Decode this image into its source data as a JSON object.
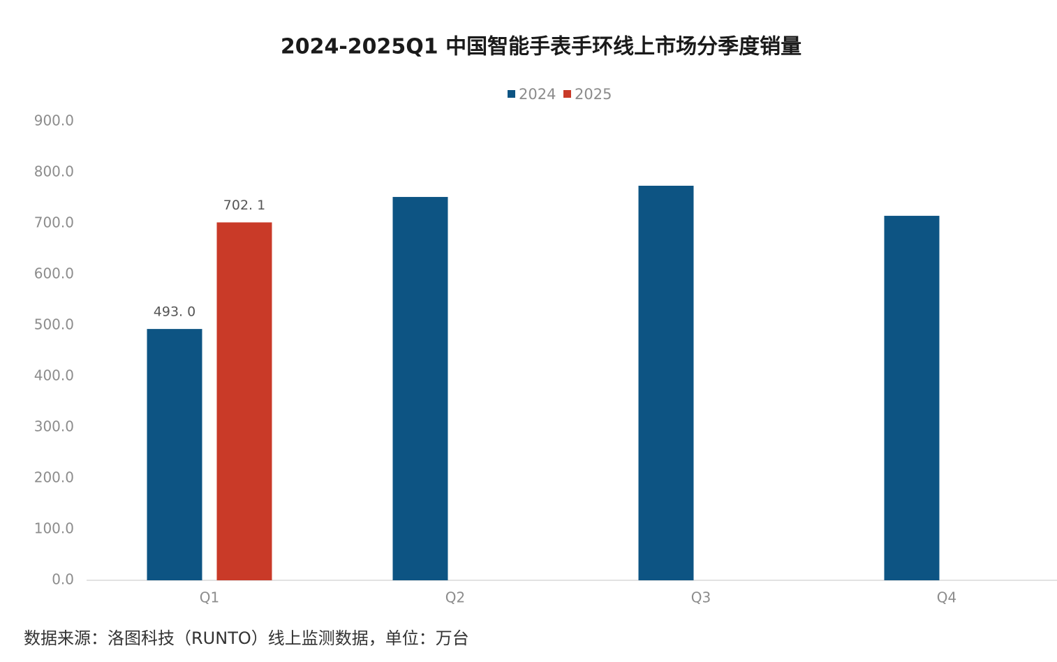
{
  "chart_data": {
    "type": "bar",
    "title": "2024-2025Q1 中国智能手表手环线上市场分季度销量",
    "categories": [
      "Q1",
      "Q2",
      "Q3",
      "Q4"
    ],
    "series": [
      {
        "name": "2024",
        "color": "#0d5483",
        "values": [
          493.0,
          752,
          774,
          715
        ],
        "value_labels": [
          "493. 0",
          null,
          null,
          null
        ]
      },
      {
        "name": "2025",
        "color": "#c93a28",
        "values": [
          702.1,
          null,
          null,
          null
        ],
        "value_labels": [
          "702. 1",
          null,
          null,
          null
        ]
      }
    ],
    "ylim": [
      0,
      900
    ],
    "yticks": [
      {
        "value": 0,
        "label": "0.0"
      },
      {
        "value": 100,
        "label": "100.0"
      },
      {
        "value": 200,
        "label": "200.0"
      },
      {
        "value": 300,
        "label": "300.0"
      },
      {
        "value": 400,
        "label": "400.0"
      },
      {
        "value": 500,
        "label": "500.0"
      },
      {
        "value": 600,
        "label": "600.0"
      },
      {
        "value": 700,
        "label": "700.0"
      },
      {
        "value": 800,
        "label": "800.0"
      },
      {
        "value": 900,
        "label": "900.0"
      }
    ],
    "grid": false,
    "legend": "top",
    "source": "数据来源：洛图科技（RUNTO）线上监测数据，单位：万台"
  }
}
